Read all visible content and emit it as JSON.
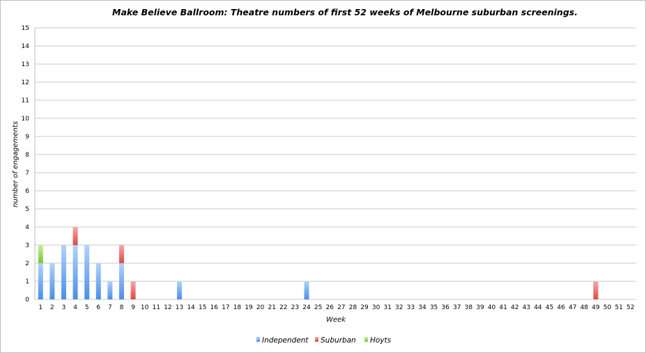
{
  "chart_data": {
    "type": "bar",
    "stacked": true,
    "title": "Make Believe Ballroom: Theatre numbers of first 52 weeks of Melbourne suburban screenings.",
    "xlabel": "Week",
    "ylabel": "number of engagements",
    "ylim": [
      0,
      15
    ],
    "yticks": [
      "0",
      "1",
      "2",
      "3",
      "4",
      "5",
      "6",
      "7",
      "8",
      "9",
      "10",
      "11",
      "12",
      "13",
      "14",
      "15"
    ],
    "grid": true,
    "legend_position": "bottom",
    "categories": [
      "1",
      "2",
      "3",
      "4",
      "5",
      "6",
      "7",
      "8",
      "9",
      "10",
      "11",
      "12",
      "13",
      "14",
      "15",
      "16",
      "17",
      "18",
      "19",
      "20",
      "21",
      "22",
      "23",
      "24",
      "25",
      "26",
      "27",
      "28",
      "29",
      "30",
      "31",
      "32",
      "33",
      "34",
      "35",
      "36",
      "37",
      "38",
      "39",
      "40",
      "41",
      "42",
      "43",
      "44",
      "45",
      "46",
      "47",
      "48",
      "49",
      "50",
      "51",
      "52"
    ],
    "series": [
      {
        "name": "Independent",
        "color": "#5a9bea",
        "values": [
          2,
          2,
          3,
          3,
          3,
          2,
          1,
          2,
          0,
          0,
          0,
          0,
          1,
          0,
          0,
          0,
          0,
          0,
          0,
          0,
          0,
          0,
          0,
          1,
          0,
          0,
          0,
          0,
          0,
          0,
          0,
          0,
          0,
          0,
          0,
          0,
          0,
          0,
          0,
          0,
          0,
          0,
          0,
          0,
          0,
          0,
          0,
          0,
          0,
          0,
          0,
          0
        ]
      },
      {
        "name": "Suburban",
        "color": "#ee5a5a",
        "values": [
          0,
          0,
          0,
          1,
          0,
          0,
          0,
          1,
          1,
          0,
          0,
          0,
          0,
          0,
          0,
          0,
          0,
          0,
          0,
          0,
          0,
          0,
          0,
          0,
          0,
          0,
          0,
          0,
          0,
          0,
          0,
          0,
          0,
          0,
          0,
          0,
          0,
          0,
          0,
          0,
          0,
          0,
          0,
          0,
          0,
          0,
          0,
          0,
          1,
          0,
          0,
          0
        ]
      },
      {
        "name": "Hoyts",
        "color": "#8fd14f",
        "values": [
          1,
          0,
          0,
          0,
          0,
          0,
          0,
          0,
          0,
          0,
          0,
          0,
          0,
          0,
          0,
          0,
          0,
          0,
          0,
          0,
          0,
          0,
          0,
          0,
          0,
          0,
          0,
          0,
          0,
          0,
          0,
          0,
          0,
          0,
          0,
          0,
          0,
          0,
          0,
          0,
          0,
          0,
          0,
          0,
          0,
          0,
          0,
          0,
          0,
          0,
          0,
          0
        ]
      }
    ]
  }
}
